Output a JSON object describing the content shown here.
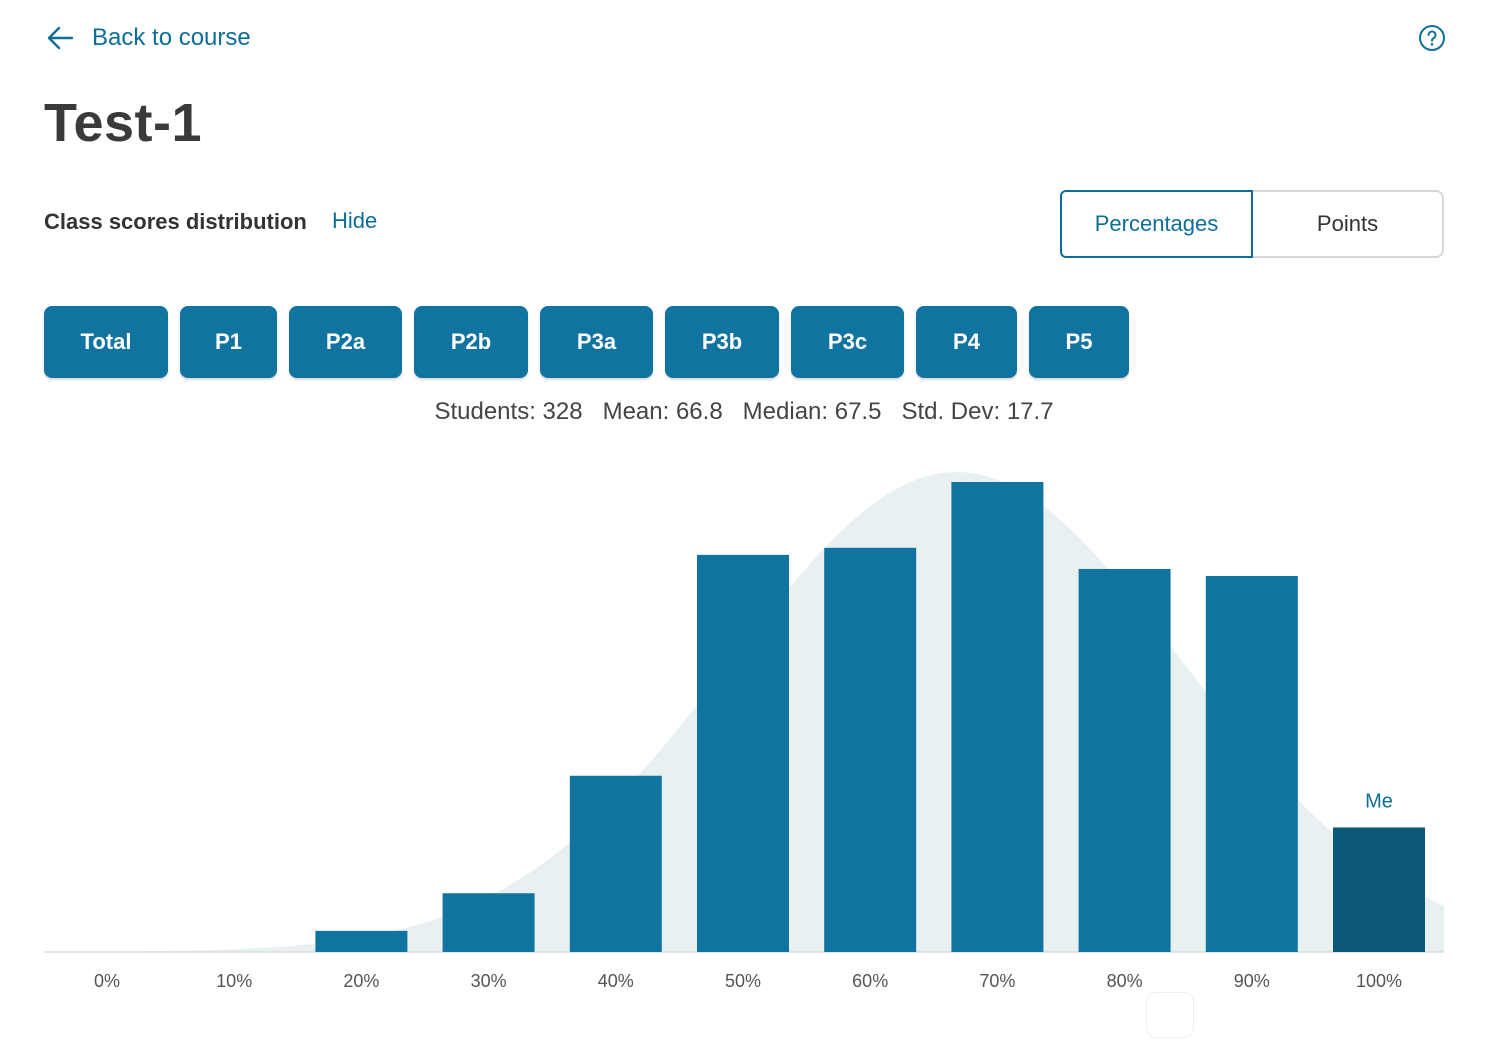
{
  "nav": {
    "back_label": "Back to course"
  },
  "title": "Test-1",
  "distribution": {
    "label": "Class scores distribution",
    "hide_label": "Hide"
  },
  "mode_toggle": {
    "options": [
      "Percentages",
      "Points"
    ],
    "selected": "Percentages"
  },
  "question_buttons": [
    "Total",
    "P1",
    "P2a",
    "P2b",
    "P3a",
    "P3b",
    "P3c",
    "P4",
    "P5"
  ],
  "stats": {
    "students": "Students: 328",
    "mean": "Mean: 66.8",
    "median": "Median: 67.5",
    "std_dev": "Std. Dev: 17.7"
  },
  "colors": {
    "accent": "#0d6e99",
    "bar": "#1174a0",
    "me_bar": "#0b5878",
    "curve": "#e9f0f2"
  },
  "chart_data": {
    "type": "bar",
    "categories": [
      "0%",
      "10%",
      "20%",
      "30%",
      "40%",
      "50%",
      "60%",
      "70%",
      "80%",
      "90%",
      "100%"
    ],
    "values": [
      0,
      0,
      4.5,
      12.5,
      37.5,
      84.5,
      86,
      100,
      81.5,
      80,
      26.5
    ],
    "highlight": {
      "index": 10,
      "label": "Me"
    },
    "normal_curve": true,
    "ylim": [
      0,
      100
    ],
    "grid": false
  }
}
